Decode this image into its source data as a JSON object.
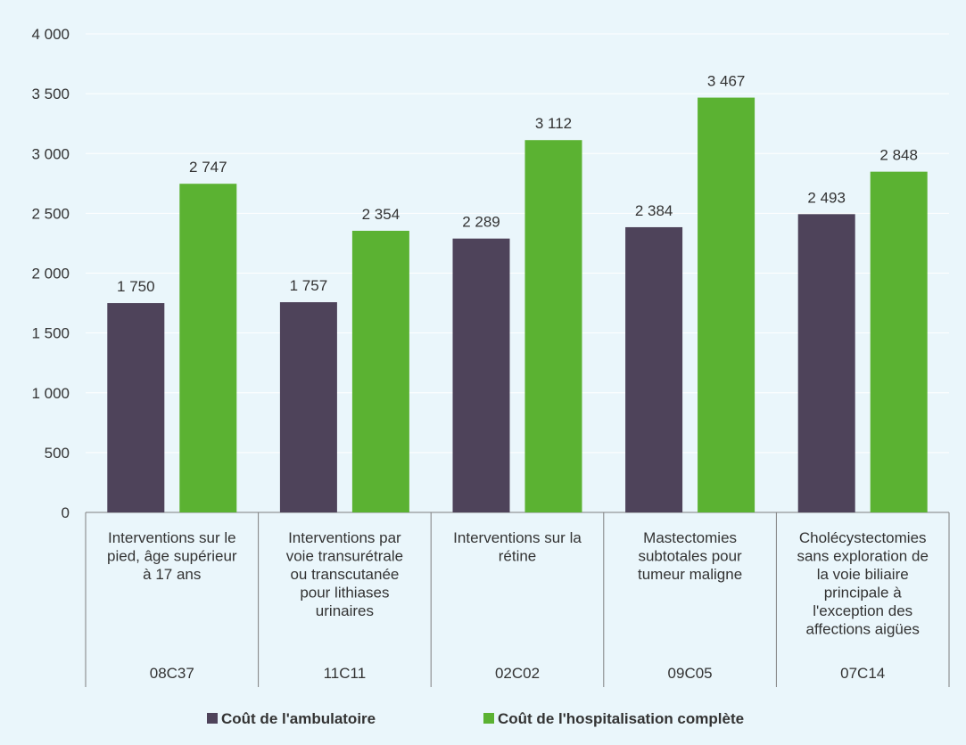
{
  "colors": {
    "ambulatoire": "#4e435a",
    "hospitalisation": "#5bb232",
    "grid": "#ffffff",
    "axis": "#7f7f7f",
    "background": "#eaf6fb"
  },
  "chart_data": {
    "type": "bar",
    "title": "",
    "xlabel": "",
    "ylabel": "",
    "ylim": [
      0,
      4000
    ],
    "yticks": [
      0,
      500,
      1000,
      1500,
      2000,
      2500,
      3000,
      3500,
      4000
    ],
    "ytick_labels": [
      "0",
      "500",
      "1 000",
      "1 500",
      "2 000",
      "2 500",
      "3 000",
      "3 500",
      "4 000"
    ],
    "grid": true,
    "legend_position": "bottom",
    "categories": [
      {
        "lines": [
          "Interventions sur le",
          "pied, âge supérieur",
          "à 17 ans"
        ],
        "code": "08C37"
      },
      {
        "lines": [
          "Interventions par",
          "voie transurétrale",
          "ou transcutanée",
          "pour lithiases",
          "urinaires"
        ],
        "code": "11C11"
      },
      {
        "lines": [
          "Interventions sur la",
          "rétine"
        ],
        "code": "02C02"
      },
      {
        "lines": [
          "Mastectomies",
          "subtotales pour",
          "tumeur maligne"
        ],
        "code": "09C05"
      },
      {
        "lines": [
          "Cholécystectomies",
          "sans exploration de",
          "la voie biliaire",
          "principale à",
          "l'exception des",
          "affections aigües"
        ],
        "code": "07C14"
      }
    ],
    "series": [
      {
        "name": "Coût de l'ambulatoire",
        "values": [
          1750,
          1757,
          2289,
          2384,
          2493
        ],
        "labels": [
          "1 750",
          "1 757",
          "2 289",
          "2 384",
          "2 493"
        ]
      },
      {
        "name": "Coût de l'hospitalisation complète",
        "values": [
          2747,
          2354,
          3112,
          3467,
          2848
        ],
        "labels": [
          "2 747",
          "2 354",
          "3 112",
          "3 467",
          "2 848"
        ]
      }
    ]
  }
}
